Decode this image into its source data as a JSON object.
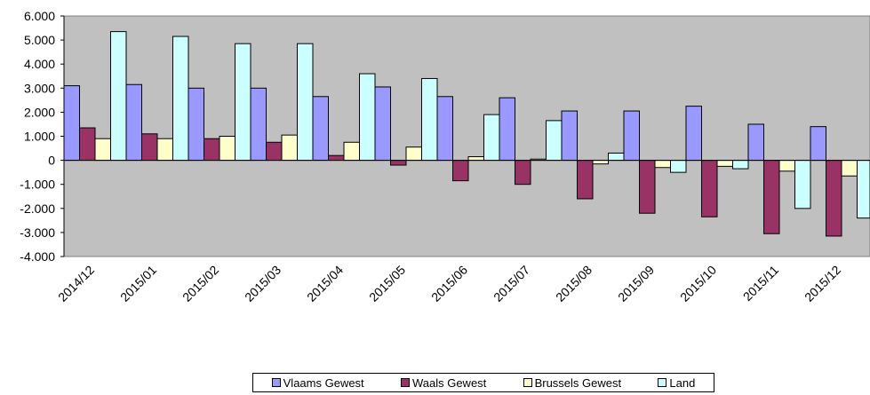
{
  "chart_data": {
    "type": "bar",
    "title": "",
    "xlabel": "",
    "ylabel": "",
    "categories": [
      "2014/12",
      "2015/01",
      "2015/02",
      "2015/03",
      "2015/04",
      "2015/05",
      "2015/06",
      "2015/07",
      "2015/08",
      "2015/09",
      "2015/10",
      "2015/11",
      "2015/12"
    ],
    "ylim": [
      -4000,
      6000
    ],
    "yticks": [
      6000,
      5000,
      4000,
      3000,
      2000,
      1000,
      0,
      -1000,
      -2000,
      -3000,
      -4000
    ],
    "ytick_labels": [
      "6.000",
      "5.000",
      "4.000",
      "3.000",
      "2.000",
      "1.000",
      "0",
      "-1.000",
      "-2.000",
      "-3.000",
      "-4.000"
    ],
    "grid": false,
    "plot_background": "#c0c0c0",
    "legend_position": "bottom",
    "series": [
      {
        "name": "Vlaams Gewest",
        "color": "#9999ff",
        "values": [
          3100,
          3150,
          3000,
          3000,
          2650,
          3050,
          2650,
          2600,
          2050,
          2050,
          2250,
          1500,
          1400
        ]
      },
      {
        "name": "Waals Gewest",
        "color": "#993366",
        "values": [
          1350,
          1100,
          900,
          750,
          200,
          -200,
          -850,
          -1000,
          -1600,
          -2200,
          -2350,
          -3050,
          -3150
        ]
      },
      {
        "name": "Brussels Gewest",
        "color": "#ffffcc",
        "values": [
          900,
          900,
          1000,
          1050,
          750,
          550,
          150,
          50,
          -150,
          -300,
          -250,
          -450,
          -650
        ]
      },
      {
        "name": "Land",
        "color": "#ccffff",
        "values": [
          5350,
          5150,
          4850,
          4850,
          3600,
          3400,
          1900,
          1650,
          300,
          -500,
          -350,
          -2000,
          -2400
        ]
      }
    ]
  }
}
